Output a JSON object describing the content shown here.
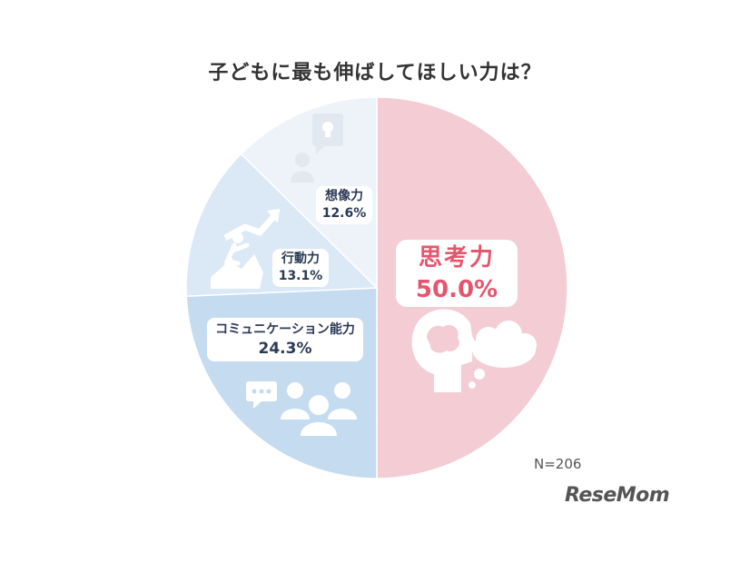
{
  "chart_data": {
    "type": "pie",
    "title": "子どもに最も伸ばしてほしい力は？",
    "slices": [
      {
        "label": "思考力",
        "percent_text": "50.0%",
        "value": 50.0,
        "color": "#f4ccd4"
      },
      {
        "label": "コミュニケーション能力",
        "percent_text": "24.3%",
        "value": 24.3,
        "color": "#c5dbf0"
      },
      {
        "label": "行動力",
        "percent_text": "13.1%",
        "value": 13.1,
        "color": "#dbe8f5"
      },
      {
        "label": "想像力",
        "percent_text": "12.6%",
        "value": 12.6,
        "color": "#eef3fa"
      }
    ],
    "note": "N=206"
  },
  "branding": {
    "logo": "ReseMom"
  },
  "icons": [
    "brain-head-icon",
    "thought-bubble-icon",
    "group-chat-icon",
    "climbing-arrow-icon",
    "lightbulb-person-icon"
  ]
}
